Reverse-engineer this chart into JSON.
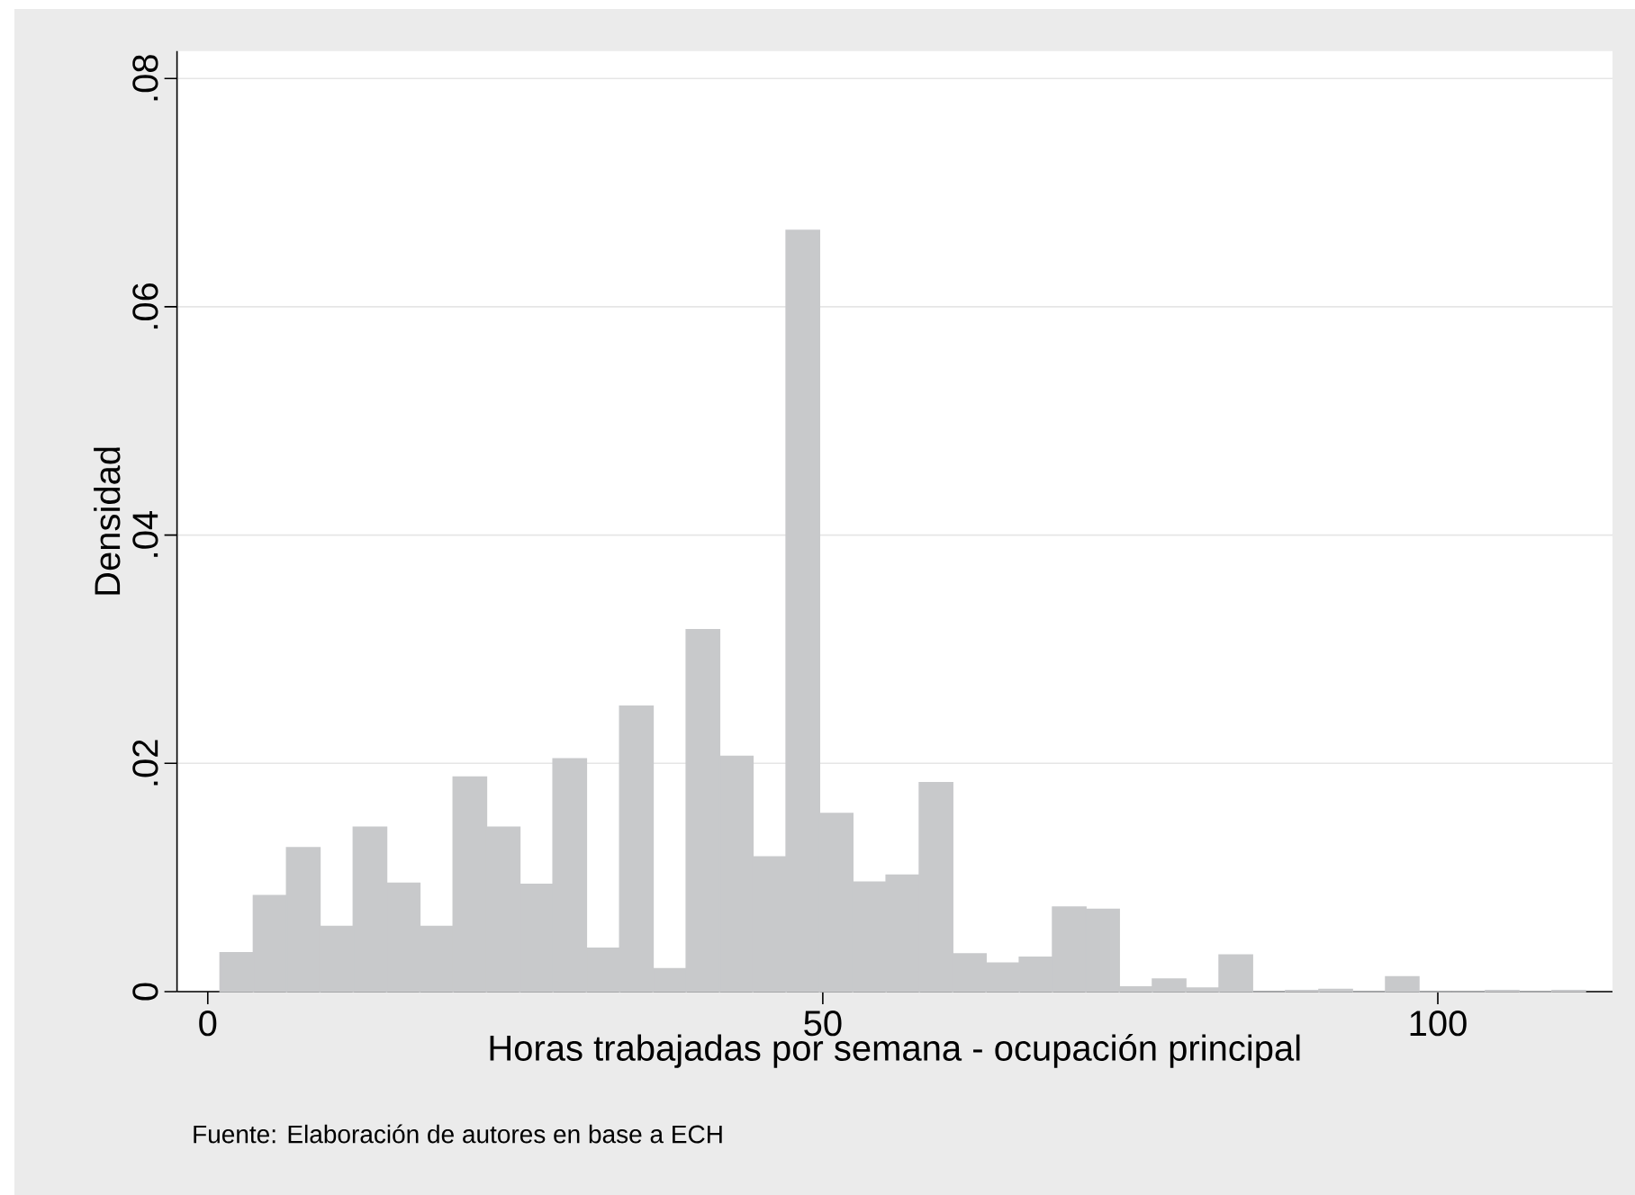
{
  "chart_data": {
    "type": "histogram",
    "xlabel": "Horas trabajadas por semana - ocupación principal",
    "ylabel": "Densidad",
    "annotations": [
      "Fuente: Elaboración de autores en base a ECH"
    ],
    "bins": [
      1,
      3.71,
      6.41,
      9.12,
      11.83,
      14.54,
      17.24,
      19.95,
      22.66,
      25.37,
      28.07,
      30.78,
      33.49,
      36.2,
      38.9,
      41.61,
      44.32,
      47.02,
      49.73,
      52.44,
      55.15,
      57.85,
      60.56,
      63.27,
      65.98,
      68.68,
      71.39,
      74.1,
      76.8,
      79.51,
      82.22,
      84.93,
      87.63,
      90.34,
      93.05,
      95.76,
      98.46,
      101.17,
      103.88,
      106.59,
      109.29,
      112
    ],
    "values": [
      0.0034,
      0.0084,
      0.0126,
      0.0057,
      0.0144,
      0.0095,
      0.0057,
      0.0188,
      0.0144,
      0.0094,
      0.0204,
      0.0038,
      0.025,
      0.002,
      0.0317,
      0.0206,
      0.0118,
      0.0667,
      0.0156,
      0.0096,
      0.0102,
      0.0183,
      0.0033,
      0.0025,
      0.003,
      0.0074,
      0.0072,
      0.0004,
      0.0011,
      0.0003,
      0.0032,
      0,
      0.0001,
      0.0002,
      0,
      0.0013,
      0,
      0,
      0.0001,
      0,
      0.0001
    ],
    "color": "#c8c9cb",
    "xlim": [
      -2.5,
      114.2
    ],
    "ylim": [
      0,
      0.0824
    ],
    "xticks": [
      0,
      50,
      100
    ],
    "yticks": [
      {
        "value": 0,
        "label": "0"
      },
      {
        "value": 0.02,
        "label": ".02"
      },
      {
        "value": 0.04,
        "label": ".04"
      },
      {
        "value": 0.06,
        "label": ".06"
      },
      {
        "value": 0.08,
        "label": ".08"
      }
    ],
    "grid": "y"
  }
}
